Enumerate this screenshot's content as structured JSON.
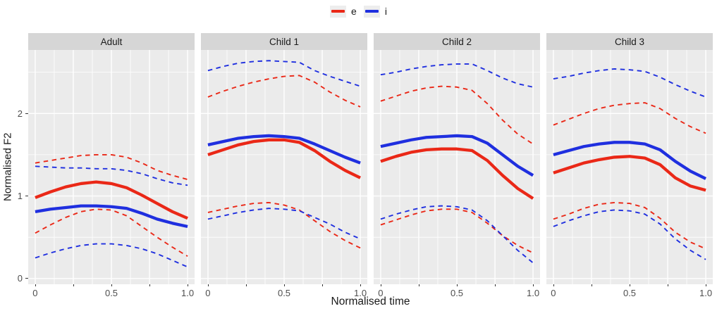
{
  "legend": {
    "entries": [
      {
        "label": "e",
        "color": "#ea2817"
      },
      {
        "label": "i",
        "color": "#1f2fdf"
      }
    ],
    "key_background": "#ededed"
  },
  "axes": {
    "x_title": "Normalised time",
    "y_title": "Normalised F2",
    "y_tick_labels": [
      "0",
      "1",
      "2"
    ],
    "x_tick_labels": [
      "0",
      "",
      "0.5",
      "",
      "1.0"
    ]
  },
  "style": {
    "panel_background": "#ebebeb",
    "strip_background": "#d6d6d6",
    "grid_color": "#ffffff",
    "tick_color": "#333333",
    "tick_label_color": "#4d4d4d"
  },
  "chart_data": {
    "type": "line",
    "title": "",
    "xlabel": "Normalised time",
    "ylabel": "Normalised F2",
    "x": [
      0,
      0.1,
      0.2,
      0.3,
      0.4,
      0.5,
      0.6,
      0.7,
      0.8,
      0.9,
      1.0
    ],
    "xlim": [
      -0.046,
      1.046
    ],
    "ylim": [
      -0.07,
      2.77
    ],
    "x_ticks": [
      0,
      0.25,
      0.5,
      0.75,
      1.0
    ],
    "x_tick_labels": [
      "0",
      "",
      "0.5",
      "",
      "1.0"
    ],
    "x_minor": [
      0.125,
      0.375,
      0.625,
      0.875
    ],
    "y_ticks": [
      0,
      1,
      2
    ],
    "y_minor": [
      0.5,
      1.5,
      2.5
    ],
    "grid": "on",
    "legend_position": "top-center",
    "series_styles": {
      "mean": {
        "dashed": false,
        "width": 4.3
      },
      "band": {
        "dashed": true,
        "width": 1.9
      }
    },
    "facets": [
      {
        "label": "Adult",
        "series": [
          {
            "name": "e_upper_ci",
            "group": "e",
            "color": "#ea2817",
            "dashed": true,
            "values": [
              1.4,
              1.43,
              1.46,
              1.49,
              1.5,
              1.5,
              1.47,
              1.4,
              1.31,
              1.25,
              1.2
            ]
          },
          {
            "name": "e_lower_ci",
            "group": "e",
            "color": "#ea2817",
            "dashed": true,
            "values": [
              0.55,
              0.65,
              0.74,
              0.81,
              0.84,
              0.83,
              0.76,
              0.63,
              0.5,
              0.38,
              0.27
            ]
          },
          {
            "name": "i_upper_ci",
            "group": "i",
            "color": "#1f2fdf",
            "dashed": true,
            "values": [
              1.36,
              1.35,
              1.34,
              1.34,
              1.33,
              1.33,
              1.31,
              1.27,
              1.21,
              1.16,
              1.13
            ]
          },
          {
            "name": "i_lower_ci",
            "group": "i",
            "color": "#1f2fdf",
            "dashed": true,
            "values": [
              0.25,
              0.31,
              0.36,
              0.4,
              0.42,
              0.42,
              0.4,
              0.36,
              0.3,
              0.22,
              0.14
            ]
          },
          {
            "name": "e_mean",
            "group": "e",
            "color": "#ea2817",
            "dashed": false,
            "values": [
              0.98,
              1.05,
              1.11,
              1.15,
              1.17,
              1.15,
              1.1,
              1.01,
              0.91,
              0.81,
              0.73
            ]
          },
          {
            "name": "i_mean",
            "group": "i",
            "color": "#1f2fdf",
            "dashed": false,
            "values": [
              0.81,
              0.84,
              0.86,
              0.88,
              0.88,
              0.87,
              0.85,
              0.79,
              0.72,
              0.67,
              0.63
            ]
          }
        ]
      },
      {
        "label": "Child 1",
        "series": [
          {
            "name": "e_upper_ci",
            "group": "e",
            "color": "#ea2817",
            "dashed": true,
            "values": [
              2.2,
              2.27,
              2.33,
              2.38,
              2.42,
              2.45,
              2.46,
              2.38,
              2.26,
              2.16,
              2.08
            ]
          },
          {
            "name": "e_lower_ci",
            "group": "e",
            "color": "#ea2817",
            "dashed": true,
            "values": [
              0.8,
              0.84,
              0.88,
              0.91,
              0.92,
              0.89,
              0.83,
              0.7,
              0.57,
              0.46,
              0.37
            ]
          },
          {
            "name": "i_upper_ci",
            "group": "i",
            "color": "#1f2fdf",
            "dashed": true,
            "values": [
              2.52,
              2.57,
              2.61,
              2.63,
              2.64,
              2.63,
              2.62,
              2.52,
              2.45,
              2.39,
              2.33
            ]
          },
          {
            "name": "i_lower_ci",
            "group": "i",
            "color": "#1f2fdf",
            "dashed": true,
            "values": [
              0.72,
              0.76,
              0.8,
              0.83,
              0.85,
              0.84,
              0.82,
              0.74,
              0.66,
              0.56,
              0.48
            ]
          },
          {
            "name": "e_mean",
            "group": "e",
            "color": "#ea2817",
            "dashed": false,
            "values": [
              1.5,
              1.56,
              1.62,
              1.66,
              1.68,
              1.68,
              1.65,
              1.55,
              1.42,
              1.31,
              1.22
            ]
          },
          {
            "name": "i_mean",
            "group": "i",
            "color": "#1f2fdf",
            "dashed": false,
            "values": [
              1.62,
              1.66,
              1.7,
              1.72,
              1.73,
              1.72,
              1.7,
              1.63,
              1.55,
              1.47,
              1.4
            ]
          }
        ]
      },
      {
        "label": "Child 2",
        "series": [
          {
            "name": "e_upper_ci",
            "group": "e",
            "color": "#ea2817",
            "dashed": true,
            "values": [
              2.15,
              2.21,
              2.27,
              2.31,
              2.33,
              2.32,
              2.28,
              2.12,
              1.92,
              1.75,
              1.63
            ]
          },
          {
            "name": "e_lower_ci",
            "group": "e",
            "color": "#ea2817",
            "dashed": true,
            "values": [
              0.65,
              0.71,
              0.77,
              0.82,
              0.84,
              0.84,
              0.8,
              0.67,
              0.52,
              0.4,
              0.31
            ]
          },
          {
            "name": "i_upper_ci",
            "group": "i",
            "color": "#1f2fdf",
            "dashed": true,
            "values": [
              2.47,
              2.5,
              2.54,
              2.57,
              2.59,
              2.6,
              2.6,
              2.52,
              2.43,
              2.36,
              2.32
            ]
          },
          {
            "name": "i_lower_ci",
            "group": "i",
            "color": "#1f2fdf",
            "dashed": true,
            "values": [
              0.72,
              0.78,
              0.83,
              0.87,
              0.88,
              0.87,
              0.83,
              0.7,
              0.52,
              0.34,
              0.19
            ]
          },
          {
            "name": "e_mean",
            "group": "e",
            "color": "#ea2817",
            "dashed": false,
            "values": [
              1.42,
              1.48,
              1.53,
              1.56,
              1.57,
              1.57,
              1.55,
              1.43,
              1.25,
              1.09,
              0.97
            ]
          },
          {
            "name": "i_mean",
            "group": "i",
            "color": "#1f2fdf",
            "dashed": false,
            "values": [
              1.6,
              1.64,
              1.68,
              1.71,
              1.72,
              1.73,
              1.72,
              1.64,
              1.5,
              1.36,
              1.25
            ]
          }
        ]
      },
      {
        "label": "Child 3",
        "series": [
          {
            "name": "e_upper_ci",
            "group": "e",
            "color": "#ea2817",
            "dashed": true,
            "values": [
              1.86,
              1.93,
              2.0,
              2.06,
              2.1,
              2.12,
              2.13,
              2.06,
              1.94,
              1.84,
              1.76
            ]
          },
          {
            "name": "e_lower_ci",
            "group": "e",
            "color": "#ea2817",
            "dashed": true,
            "values": [
              0.72,
              0.78,
              0.85,
              0.9,
              0.92,
              0.91,
              0.86,
              0.73,
              0.56,
              0.44,
              0.36
            ]
          },
          {
            "name": "i_upper_ci",
            "group": "i",
            "color": "#1f2fdf",
            "dashed": true,
            "values": [
              2.42,
              2.45,
              2.49,
              2.52,
              2.54,
              2.53,
              2.51,
              2.44,
              2.35,
              2.27,
              2.2
            ]
          },
          {
            "name": "i_lower_ci",
            "group": "i",
            "color": "#1f2fdf",
            "dashed": true,
            "values": [
              0.63,
              0.7,
              0.76,
              0.81,
              0.83,
              0.82,
              0.78,
              0.66,
              0.48,
              0.34,
              0.23
            ]
          },
          {
            "name": "e_mean",
            "group": "e",
            "color": "#ea2817",
            "dashed": false,
            "values": [
              1.28,
              1.34,
              1.4,
              1.44,
              1.47,
              1.48,
              1.46,
              1.38,
              1.22,
              1.12,
              1.07
            ]
          },
          {
            "name": "i_mean",
            "group": "i",
            "color": "#1f2fdf",
            "dashed": false,
            "values": [
              1.5,
              1.55,
              1.6,
              1.63,
              1.65,
              1.65,
              1.63,
              1.56,
              1.42,
              1.3,
              1.21
            ]
          }
        ]
      }
    ]
  }
}
